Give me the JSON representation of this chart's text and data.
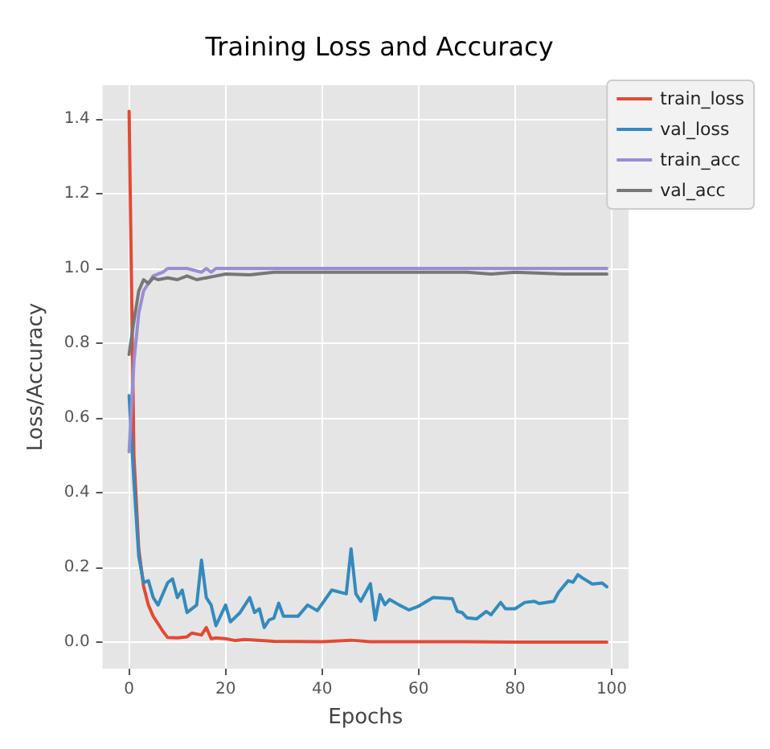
{
  "chart_data": {
    "type": "line",
    "title": "Training Loss and Accuracy",
    "xlabel": "Epochs",
    "ylabel": "Loss/Accuracy",
    "xlim": [
      -5.5,
      103.5
    ],
    "xticks": [
      0,
      20,
      40,
      60,
      80,
      100
    ],
    "ylim": [
      -0.07,
      1.49
    ],
    "yticks": [
      {
        "value": 0,
        "label": "0.0"
      },
      {
        "value": 0.2,
        "label": "0.2"
      },
      {
        "value": 0.4,
        "label": "0.4"
      },
      {
        "value": 0.6,
        "label": "0.6"
      },
      {
        "value": 0.8,
        "label": "0.8"
      },
      {
        "value": 1,
        "label": "1.0"
      },
      {
        "value": 1.2,
        "label": "1.2"
      },
      {
        "value": 1.4,
        "label": "1.4"
      }
    ],
    "grid": true,
    "legend": "top right",
    "marker": "none",
    "line_style": "solid",
    "series": [
      {
        "name": "train_loss",
        "color": "#e24a33",
        "x": [
          0,
          1,
          2,
          3,
          4,
          5,
          6,
          7,
          8,
          10,
          12,
          13,
          15,
          16,
          17,
          18,
          20,
          22,
          24,
          30,
          40,
          46,
          50,
          60,
          70,
          80,
          90,
          99
        ],
        "values": [
          1.42,
          0.5,
          0.25,
          0.15,
          0.1,
          0.07,
          0.05,
          0.03,
          0.013,
          0.012,
          0.015,
          0.025,
          0.02,
          0.04,
          0.01,
          0.012,
          0.01,
          0.005,
          0.008,
          0.003,
          0.002,
          0.006,
          0.002,
          0.002,
          0.002,
          0.001,
          0.001,
          0.001
        ]
      },
      {
        "name": "val_loss",
        "color": "#348abd",
        "x": [
          0,
          1,
          2,
          3,
          4,
          5,
          6,
          7,
          8,
          9,
          10,
          11,
          12,
          14,
          15,
          16,
          17,
          18,
          20,
          21,
          23,
          25,
          26,
          27,
          28,
          29,
          30,
          31,
          32,
          35,
          37,
          39,
          42,
          45,
          46,
          47,
          48,
          50,
          51,
          52,
          53,
          54,
          56,
          58,
          60,
          63,
          67,
          68,
          69,
          70,
          72,
          74,
          75,
          77,
          78,
          80,
          82,
          84,
          85,
          88,
          89,
          91,
          92,
          93,
          94,
          96,
          98,
          99
        ],
        "values": [
          0.66,
          0.43,
          0.23,
          0.16,
          0.165,
          0.12,
          0.1,
          0.13,
          0.16,
          0.17,
          0.12,
          0.14,
          0.08,
          0.1,
          0.22,
          0.12,
          0.1,
          0.045,
          0.1,
          0.055,
          0.08,
          0.12,
          0.08,
          0.09,
          0.04,
          0.06,
          0.065,
          0.105,
          0.07,
          0.07,
          0.1,
          0.085,
          0.14,
          0.13,
          0.25,
          0.13,
          0.11,
          0.157,
          0.06,
          0.128,
          0.101,
          0.115,
          0.1,
          0.087,
          0.097,
          0.12,
          0.117,
          0.083,
          0.08,
          0.066,
          0.063,
          0.083,
          0.074,
          0.107,
          0.09,
          0.09,
          0.107,
          0.11,
          0.104,
          0.11,
          0.134,
          0.165,
          0.161,
          0.181,
          0.172,
          0.156,
          0.159,
          0.149
        ]
      },
      {
        "name": "train_acc",
        "color": "#988ed5",
        "x": [
          0,
          1,
          2,
          3,
          4,
          5,
          7,
          8,
          12,
          15,
          16,
          17,
          18,
          20,
          30,
          50,
          70,
          99
        ],
        "values": [
          0.51,
          0.75,
          0.88,
          0.94,
          0.96,
          0.98,
          0.99,
          1.0,
          1.0,
          0.99,
          1.0,
          0.99,
          1.0,
          1.0,
          1.0,
          1.0,
          1.0,
          1.0
        ]
      },
      {
        "name": "val_acc",
        "color": "#777777",
        "x": [
          0,
          1,
          2,
          3,
          4,
          5,
          6,
          8,
          10,
          12,
          14,
          16,
          18,
          20,
          25,
          30,
          50,
          60,
          70,
          75,
          80,
          90,
          99
        ],
        "values": [
          0.77,
          0.86,
          0.94,
          0.97,
          0.96,
          0.975,
          0.97,
          0.975,
          0.97,
          0.98,
          0.97,
          0.975,
          0.98,
          0.985,
          0.983,
          0.99,
          0.99,
          0.99,
          0.99,
          0.985,
          0.99,
          0.985,
          0.985
        ]
      }
    ]
  }
}
